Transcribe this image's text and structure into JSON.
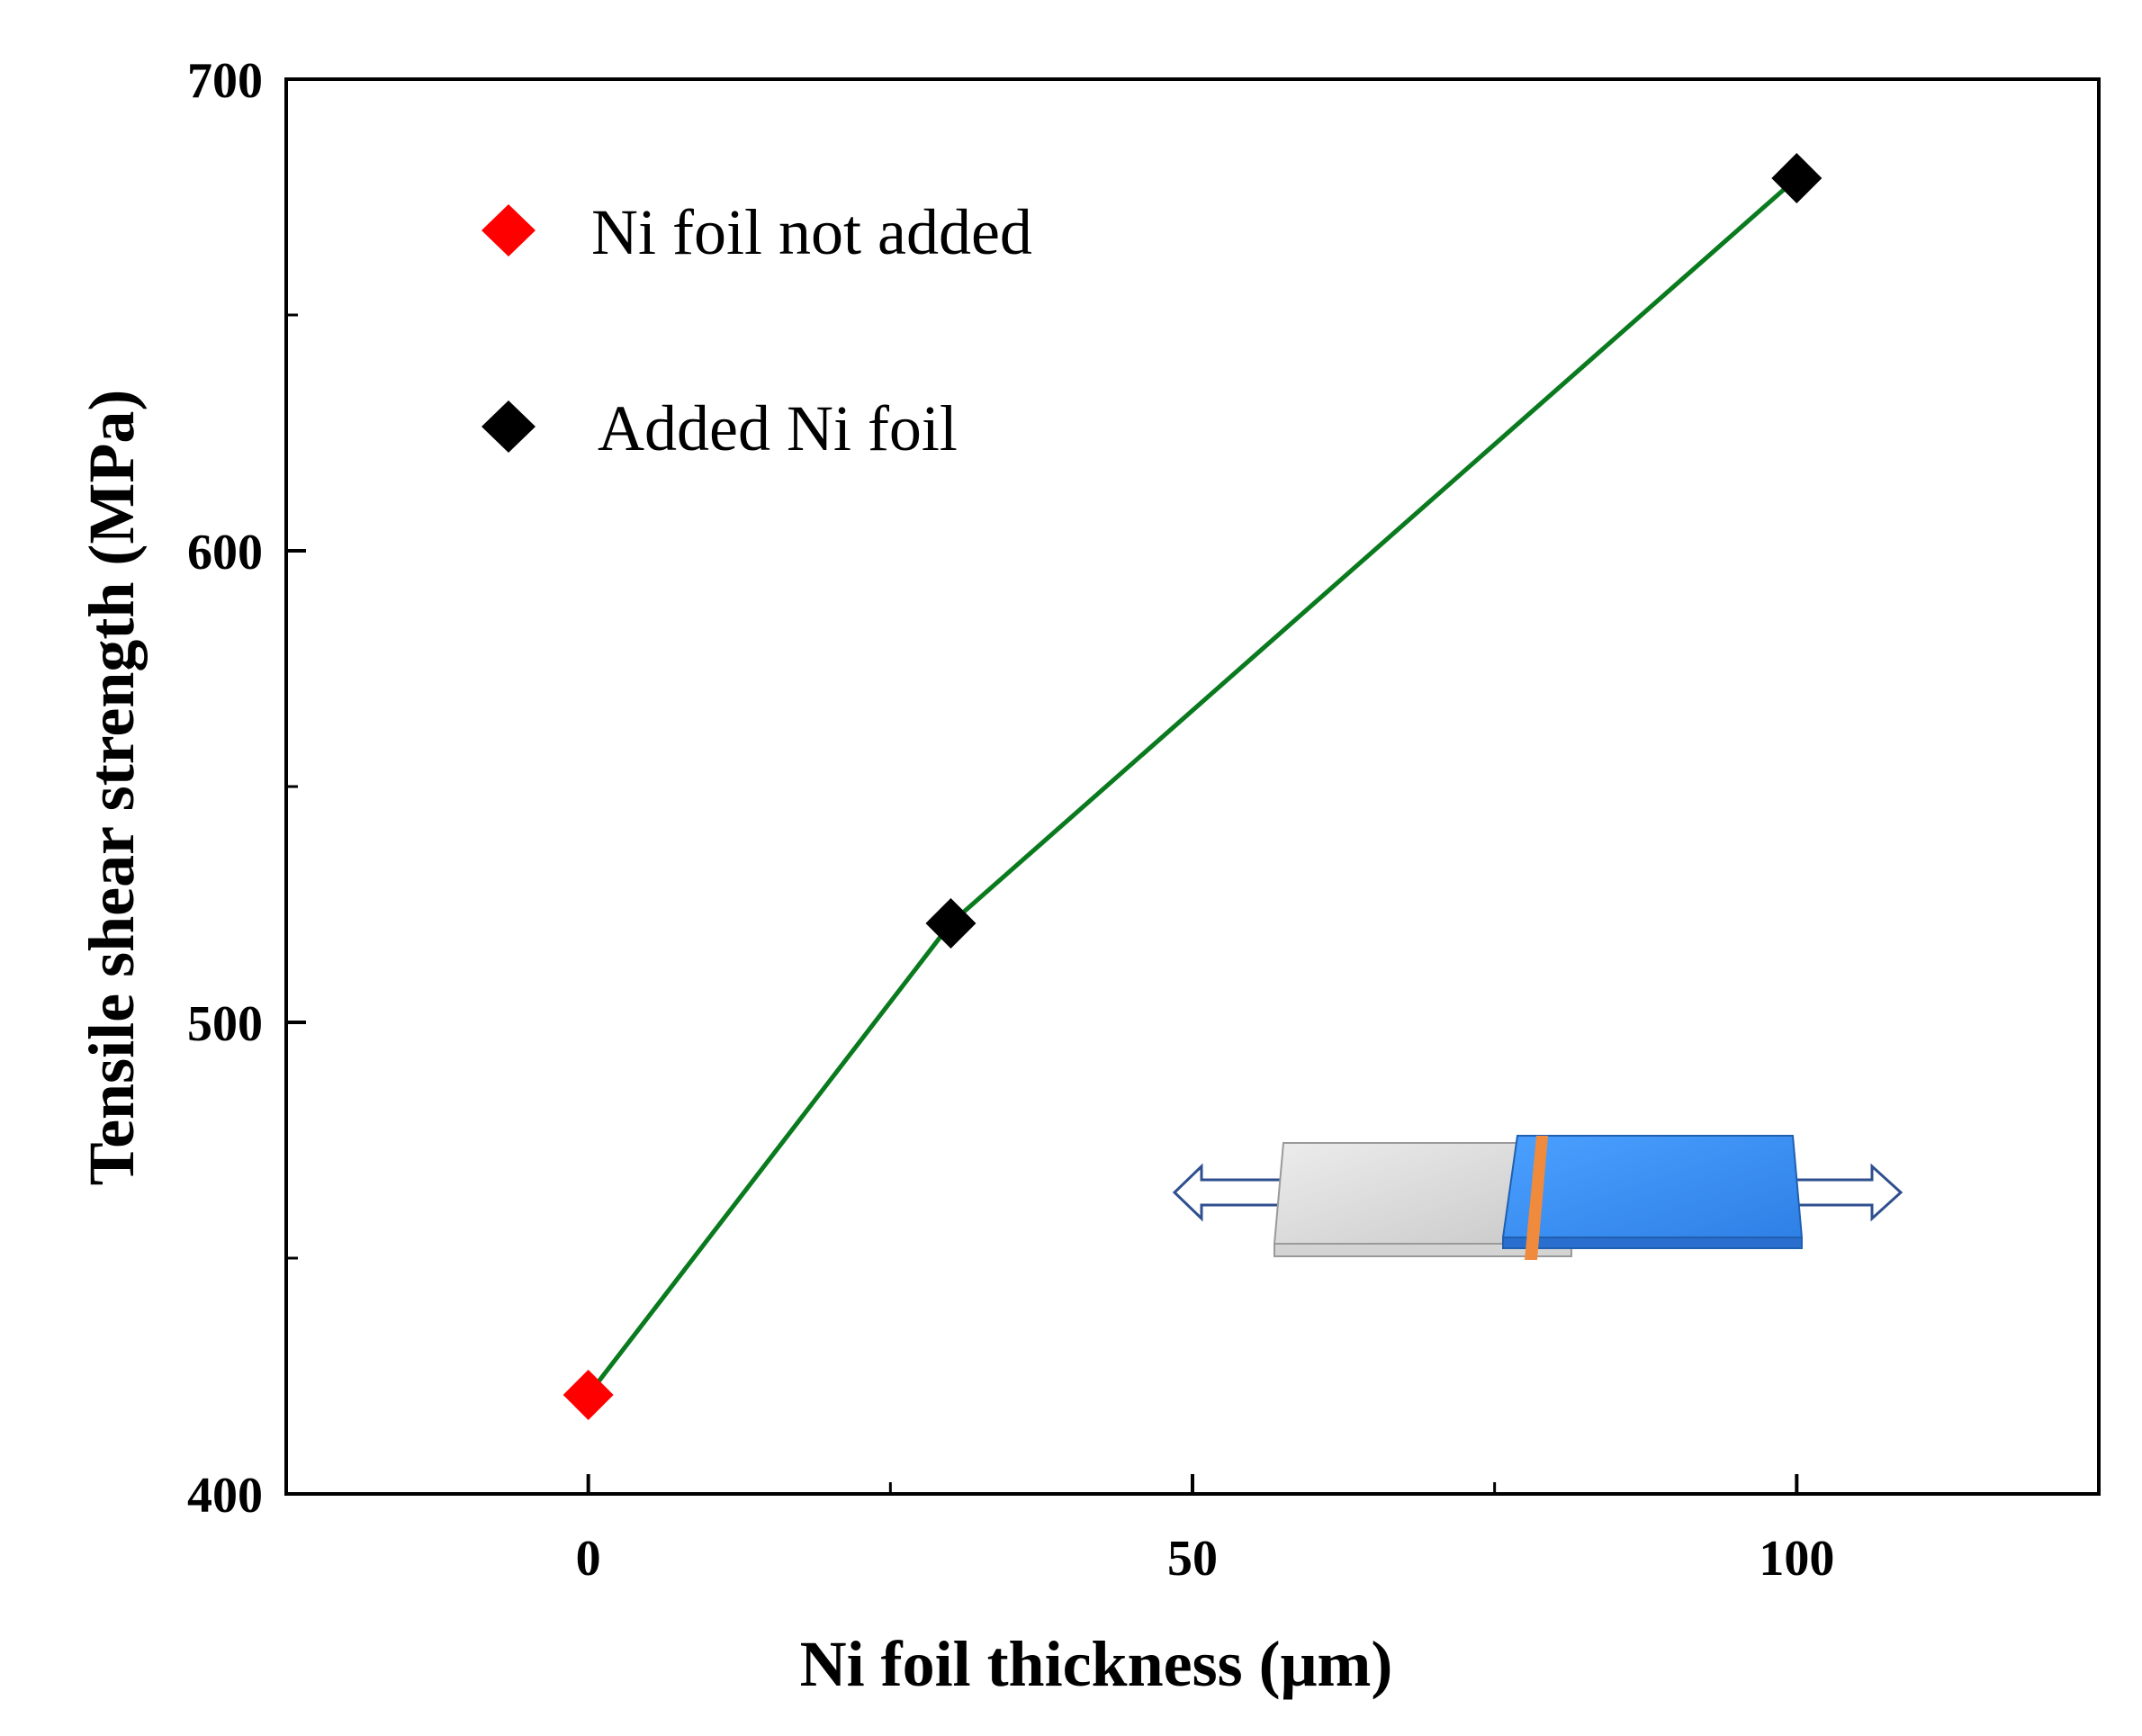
{
  "chart_data": {
    "type": "line",
    "title": "",
    "xlabel": "Ni foil thickness (μm)",
    "ylabel": "Tensile shear strength (MPa)",
    "xlim": [
      -25,
      125
    ],
    "ylim": [
      400,
      700
    ],
    "x_ticks": [
      0,
      50,
      100
    ],
    "x_tick_labels": [
      "0",
      "50",
      "100"
    ],
    "x_minor_ticks": [
      25,
      75
    ],
    "y_ticks": [
      400,
      500,
      600,
      700
    ],
    "y_tick_labels": [
      "400",
      "500",
      "600",
      "700"
    ],
    "y_minor_ticks": [
      450,
      550,
      650
    ],
    "grid": false,
    "legend_position": "top-left",
    "line": {
      "color": "#0a7a1e",
      "x": [
        0,
        30,
        100
      ],
      "y": [
        421,
        521,
        679
      ]
    },
    "series": [
      {
        "name": "Ni foil not added",
        "color": "#ff0000",
        "marker": "diamond",
        "x": [
          0
        ],
        "y": [
          421
        ]
      },
      {
        "name": "Added Ni foil",
        "color": "#000000",
        "marker": "diamond",
        "x": [
          30,
          100
        ],
        "y": [
          521,
          679
        ]
      }
    ],
    "inset": {
      "description_icon": "lap-shear-specimen-icon",
      "colors": {
        "left_plate": "#d9d9d9",
        "right_plate": "#3d8ef0",
        "foil": "#f08a3c",
        "arrow": "#2f4f8f"
      }
    }
  }
}
